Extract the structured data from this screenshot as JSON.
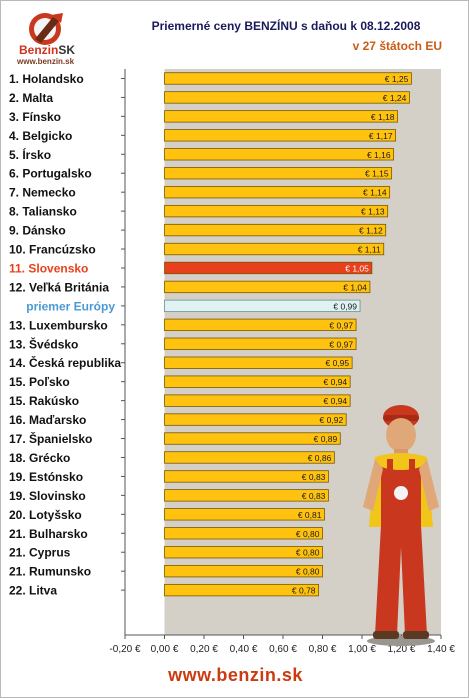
{
  "header": {
    "title": "Priemerné ceny BENZÍNU s daňou k 08.12.2008",
    "subtitle": "v 27 štátoch EU",
    "logo_word": "Benzin",
    "logo_sk": "SK",
    "logo_url": "www.benzin.sk"
  },
  "footer": {
    "url": "www.benzin.sk"
  },
  "colors": {
    "bar": "#ffc20e",
    "bar_border": "#7a5800",
    "highlight": "#e8401c",
    "average": "#dff3f3",
    "plot_bg": "#d4d0c8",
    "plot_left_bg": "#ffffff",
    "highlight_label": "#e8401c",
    "average_label": "#4a9ad4"
  },
  "chart_data": {
    "type": "bar",
    "orientation": "horizontal",
    "categories": [
      "1. Holandsko",
      "2. Malta",
      "3. Fínsko",
      "4. Belgicko",
      "5. Írsko",
      "6. Portugalsko",
      "7. Nemecko",
      "8. Taliansko",
      "9. Dánsko",
      "10. Francúzsko",
      "11. Slovensko",
      "12. Veľká Británia",
      "priemer Európy",
      "13. Luxembursko",
      "13. Švédsko",
      "14. Česká republika",
      "15. Poľsko",
      "15. Rakúsko",
      "16. Maďarsko",
      "17. Španielsko",
      "18. Grécko",
      "19. Estónsko",
      "19. Slovinsko",
      "20. Lotyšsko",
      "21. Bulharsko",
      "21. Cyprus",
      "21. Rumunsko",
      "22. Litva"
    ],
    "values": [
      1.25,
      1.24,
      1.18,
      1.17,
      1.16,
      1.15,
      1.14,
      1.13,
      1.12,
      1.11,
      1.05,
      1.04,
      0.99,
      0.97,
      0.97,
      0.95,
      0.94,
      0.94,
      0.92,
      0.89,
      0.86,
      0.83,
      0.83,
      0.81,
      0.8,
      0.8,
      0.8,
      0.78
    ],
    "value_labels": [
      "€ 1,25",
      "€ 1,24",
      "€ 1,18",
      "€ 1,17",
      "€ 1,16",
      "€ 1,15",
      "€ 1,14",
      "€ 1,13",
      "€ 1,12",
      "€ 1,11",
      "€ 1,05",
      "€ 1,04",
      "€ 0,99",
      "€ 0,97",
      "€ 0,97",
      "€ 0,95",
      "€ 0,94",
      "€ 0,94",
      "€ 0,92",
      "€ 0,89",
      "€ 0,86",
      "€ 0,83",
      "€ 0,83",
      "€ 0,81",
      "€ 0,80",
      "€ 0,80",
      "€ 0,80",
      "€ 0,78"
    ],
    "highlight_index": 10,
    "average_index": 12,
    "xlim": [
      -0.2,
      1.4
    ],
    "x_ticks": [
      -0.2,
      0.0,
      0.2,
      0.4,
      0.6,
      0.8,
      1.0,
      1.2,
      1.4
    ],
    "x_tick_labels": [
      "-0,20 €",
      "0,00 €",
      "0,20 €",
      "0,40 €",
      "0,60 €",
      "0,80 €",
      "1,00 €",
      "1,20 €",
      "1,40 €"
    ],
    "title": "Priemerné ceny BENZÍNU s daňou k 08.12.2008",
    "subtitle": "v 27 štátoch EU",
    "xlabel": "",
    "ylabel": "",
    "grid": false,
    "legend": "none"
  }
}
